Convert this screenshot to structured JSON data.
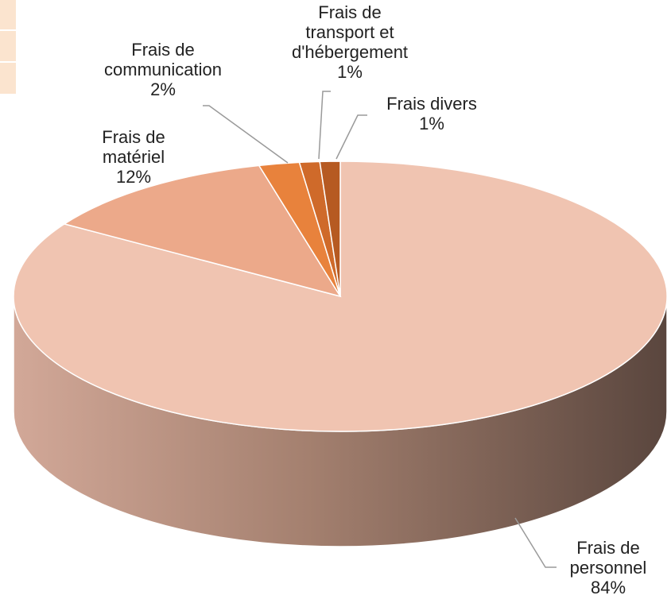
{
  "chart_data": {
    "type": "pie3d",
    "categories": [
      "Frais de personnel",
      "Frais de matériel",
      "Frais de communication",
      "Frais de transport et d'hébergement",
      "Frais divers"
    ],
    "values": [
      84,
      12,
      2,
      1,
      1
    ],
    "value_labels": [
      "84%",
      "12%",
      "2%",
      "1%",
      "1%"
    ],
    "colors": [
      "#f0c4b1",
      "#eca98a",
      "#e8823c",
      "#cf6a2a",
      "#b65a22"
    ]
  }
}
